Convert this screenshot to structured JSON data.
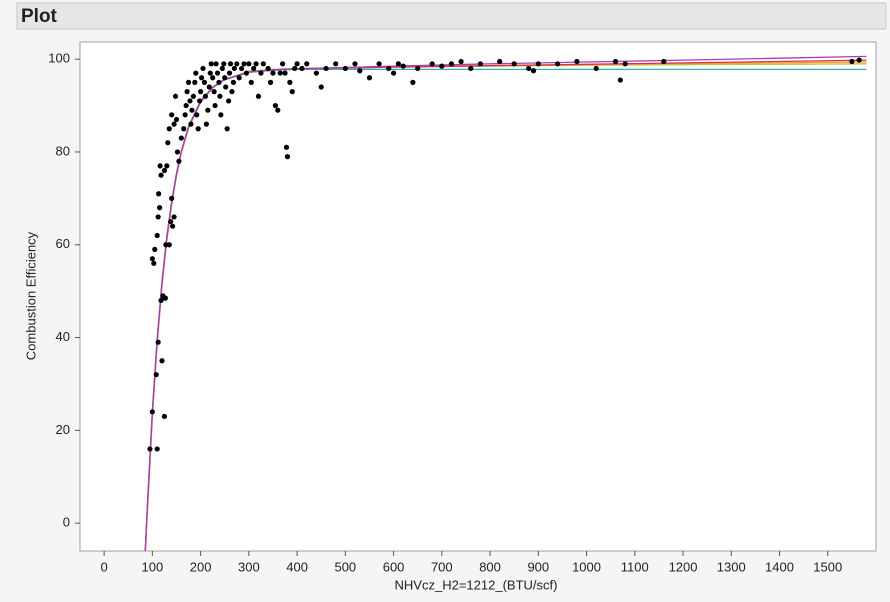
{
  "panel_title": "Plot",
  "chart_data": {
    "type": "scatter",
    "x_label": "NHVcz_H2=1212_(BTU/scf)",
    "y_label": "Combustion Efficiency",
    "xlim": [
      -50,
      1600
    ],
    "ylim": [
      -6,
      103.7
    ],
    "xticks": [
      0,
      100,
      200,
      300,
      400,
      500,
      600,
      700,
      800,
      900,
      1000,
      1100,
      1200,
      1300,
      1400,
      1500
    ],
    "yticks": [
      0,
      20,
      40,
      60,
      80,
      100
    ],
    "series": [
      {
        "type": "scatter",
        "color": "#000000",
        "x": [
          95,
          100,
          110,
          108,
          112,
          120,
          125,
          118,
          122,
          127,
          100,
          103,
          105,
          110,
          112,
          115,
          113,
          118,
          116,
          125,
          130,
          128,
          135,
          138,
          142,
          145,
          140,
          132,
          135,
          140,
          145,
          150,
          148,
          152,
          155,
          160,
          165,
          168,
          170,
          172,
          175,
          178,
          180,
          182,
          185,
          188,
          190,
          192,
          195,
          198,
          200,
          202,
          205,
          208,
          210,
          212,
          215,
          218,
          220,
          222,
          225,
          228,
          230,
          232,
          235,
          238,
          240,
          242,
          245,
          248,
          250,
          252,
          255,
          258,
          260,
          262,
          265,
          268,
          270,
          275,
          280,
          285,
          290,
          295,
          300,
          305,
          310,
          315,
          320,
          325,
          330,
          340,
          345,
          350,
          355,
          360,
          365,
          370,
          375,
          378,
          380,
          385,
          390,
          395,
          400,
          410,
          420,
          440,
          450,
          460,
          480,
          500,
          520,
          530,
          550,
          570,
          590,
          600,
          610,
          620,
          640,
          650,
          680,
          700,
          720,
          740,
          760,
          780,
          820,
          850,
          880,
          890,
          900,
          940,
          980,
          1020,
          1060,
          1070,
          1080,
          1160,
          1550,
          1565
        ],
        "values": [
          16,
          24,
          16,
          32,
          39,
          35,
          23,
          48,
          49,
          48.5,
          57,
          56,
          59,
          62,
          66,
          68,
          71,
          75,
          77,
          76,
          77,
          60,
          60,
          65,
          64,
          66,
          70,
          82,
          85,
          88,
          86,
          87,
          92,
          80,
          78,
          83,
          85,
          88,
          90,
          93,
          95,
          91,
          86,
          89,
          92,
          95,
          97,
          88,
          85,
          91,
          93,
          96,
          98,
          95,
          92,
          86,
          89,
          94,
          97,
          99,
          96,
          93,
          90,
          99,
          97,
          95,
          92,
          88,
          98,
          99,
          96,
          94,
          85,
          91,
          97,
          99,
          93,
          95,
          98,
          99,
          96,
          98,
          99,
          97,
          99,
          95,
          98,
          99,
          92,
          97,
          99,
          98,
          95,
          97,
          90,
          89,
          97,
          99,
          97,
          81,
          79,
          95,
          93,
          98,
          99,
          98,
          99,
          97,
          94,
          98,
          99,
          98,
          99,
          97.5,
          96,
          99,
          98,
          97,
          99,
          98.5,
          95,
          98,
          99,
          98.5,
          99,
          99.5,
          98,
          99,
          99.5,
          99,
          98,
          97.5,
          99,
          99,
          99.5,
          98,
          99.5,
          95.5,
          99,
          99.5,
          99.5,
          99.8
        ]
      },
      {
        "type": "line",
        "color": "#2fb3b3",
        "x": [
          85,
          90,
          100,
          110,
          120,
          130,
          140,
          150,
          160,
          175,
          200,
          225,
          250,
          300,
          350,
          400,
          500,
          600,
          800,
          1000,
          1200,
          1400,
          1580
        ],
        "values": [
          -7.2,
          4.6,
          24.4,
          39.9,
          52.1,
          61.8,
          69.4,
          75.4,
          80.2,
          85.5,
          91,
          94,
          95.7,
          97.2,
          97.6,
          97.8,
          97.8,
          97.8,
          97.8,
          97.8,
          97.8,
          97.8,
          97.8
        ]
      },
      {
        "type": "line",
        "color": "#f0a030",
        "x": [
          85,
          90,
          100,
          110,
          120,
          130,
          140,
          150,
          160,
          175,
          200,
          225,
          250,
          300,
          350,
          400,
          500,
          600,
          800,
          1000,
          1200,
          1400,
          1580
        ],
        "values": [
          -6,
          2.5,
          22.8,
          38.6,
          51,
          60.8,
          68.6,
          74.8,
          79.7,
          85.1,
          90.7,
          93.8,
          95.6,
          97.4,
          97.8,
          98,
          98.2,
          98.4,
          98.6,
          98.8,
          99,
          99.2,
          99.4
        ]
      },
      {
        "type": "line",
        "color": "#c8c040",
        "x": [
          85,
          90,
          100,
          110,
          120,
          130,
          140,
          150,
          160,
          175,
          200,
          225,
          250,
          300,
          350,
          400,
          500,
          600,
          800,
          1000,
          1200,
          1400,
          1580
        ],
        "values": [
          -8,
          3.5,
          23.6,
          39.2,
          51.5,
          61.2,
          68.9,
          75,
          79.9,
          85.2,
          90.8,
          93.9,
          95.6,
          97.3,
          97.7,
          97.9,
          98.1,
          98.3,
          98.5,
          98.7,
          98.8,
          98.9,
          99
        ]
      },
      {
        "type": "line",
        "color": "#e03040",
        "x": [
          85,
          90,
          100,
          110,
          120,
          130,
          140,
          150,
          160,
          175,
          200,
          225,
          250,
          300,
          350,
          400,
          500,
          600,
          800,
          1000,
          1200,
          1400,
          1580
        ],
        "values": [
          -7,
          4,
          24,
          39.5,
          51.8,
          61.5,
          69.1,
          75.2,
          80,
          85.3,
          90.8,
          93.9,
          95.6,
          97.2,
          97.7,
          97.9,
          98.1,
          98.3,
          98.6,
          98.9,
          99.2,
          99.5,
          99.8
        ]
      },
      {
        "type": "line",
        "color": "#a040c0",
        "x": [
          85,
          90,
          100,
          110,
          120,
          130,
          140,
          150,
          160,
          175,
          200,
          225,
          250,
          300,
          350,
          400,
          500,
          600,
          800,
          1000,
          1200,
          1400,
          1580
        ],
        "values": [
          -6.5,
          4.2,
          24.1,
          39.6,
          51.9,
          61.6,
          69.2,
          75.3,
          80.1,
          85.4,
          90.9,
          93.9,
          95.6,
          97.2,
          97.7,
          97.9,
          98.2,
          98.5,
          99,
          99.4,
          99.8,
          100.2,
          100.6
        ]
      }
    ]
  }
}
